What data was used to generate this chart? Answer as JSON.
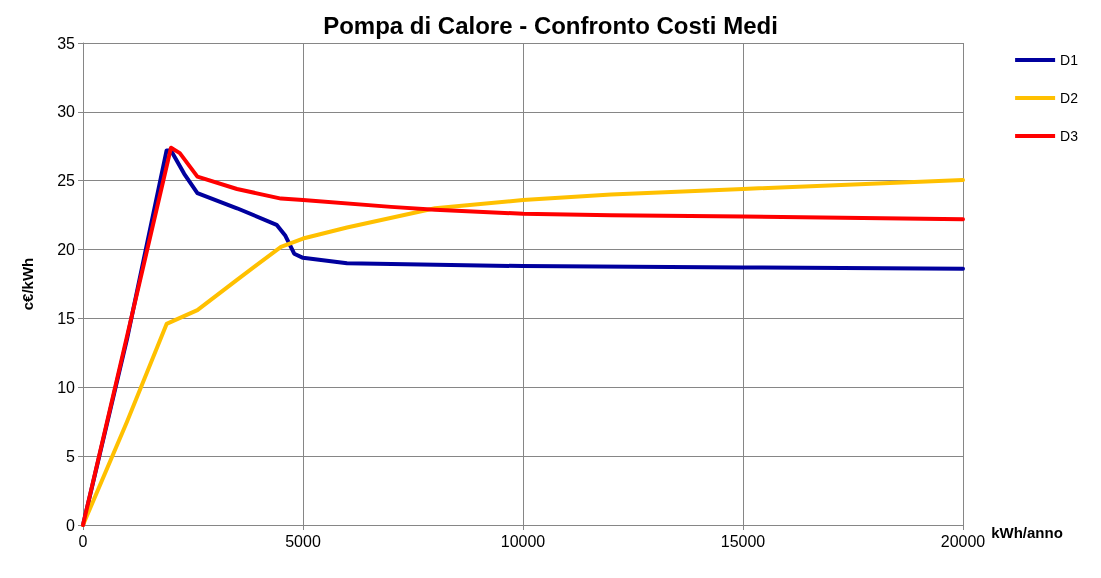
{
  "chart_data": {
    "type": "line",
    "title": "Pompa di Calore - Confronto Costi Medi",
    "xlabel": "kWh/anno",
    "ylabel": "c€/kWh",
    "xlim": [
      0,
      20000
    ],
    "xticks": [
      0,
      5000,
      10000,
      15000,
      20000
    ],
    "ylim": [
      0,
      35
    ],
    "yticks": [
      0,
      5,
      10,
      15,
      20,
      25,
      30,
      35
    ],
    "grid": true,
    "legend": "right",
    "marker": "none",
    "line_style": "solid",
    "series": [
      {
        "name": "D1",
        "color": "#00009e",
        "x": [
          0,
          1000,
          1900,
          2000,
          2300,
          2600,
          3500,
          4400,
          4600,
          4800,
          5000,
          6000,
          10000,
          15000,
          20000
        ],
        "values": [
          0,
          13.5,
          27.2,
          27.2,
          25.5,
          24.1,
          23,
          21.8,
          21,
          19.7,
          19.4,
          19,
          18.8,
          18.7,
          18.6
        ]
      },
      {
        "name": "D2",
        "color": "#ffc000",
        "x": [
          0,
          1000,
          1900,
          2600,
          3500,
          4500,
          5000,
          6000,
          8000,
          10000,
          12000,
          15000,
          20000
        ],
        "values": [
          0,
          7.5,
          14.6,
          15.6,
          17.8,
          20.2,
          20.8,
          21.6,
          23,
          23.6,
          24,
          24.4,
          25.05
        ]
      },
      {
        "name": "D3",
        "color": "#ff0000",
        "x": [
          0,
          1000,
          2000,
          2200,
          2600,
          3500,
          4500,
          5000,
          7000,
          8000,
          10000,
          12000,
          15000,
          20000
        ],
        "values": [
          0,
          13.7,
          27.4,
          27,
          25.3,
          24.4,
          23.7,
          23.6,
          23.1,
          22.9,
          22.6,
          22.5,
          22.4,
          22.2
        ]
      }
    ]
  }
}
